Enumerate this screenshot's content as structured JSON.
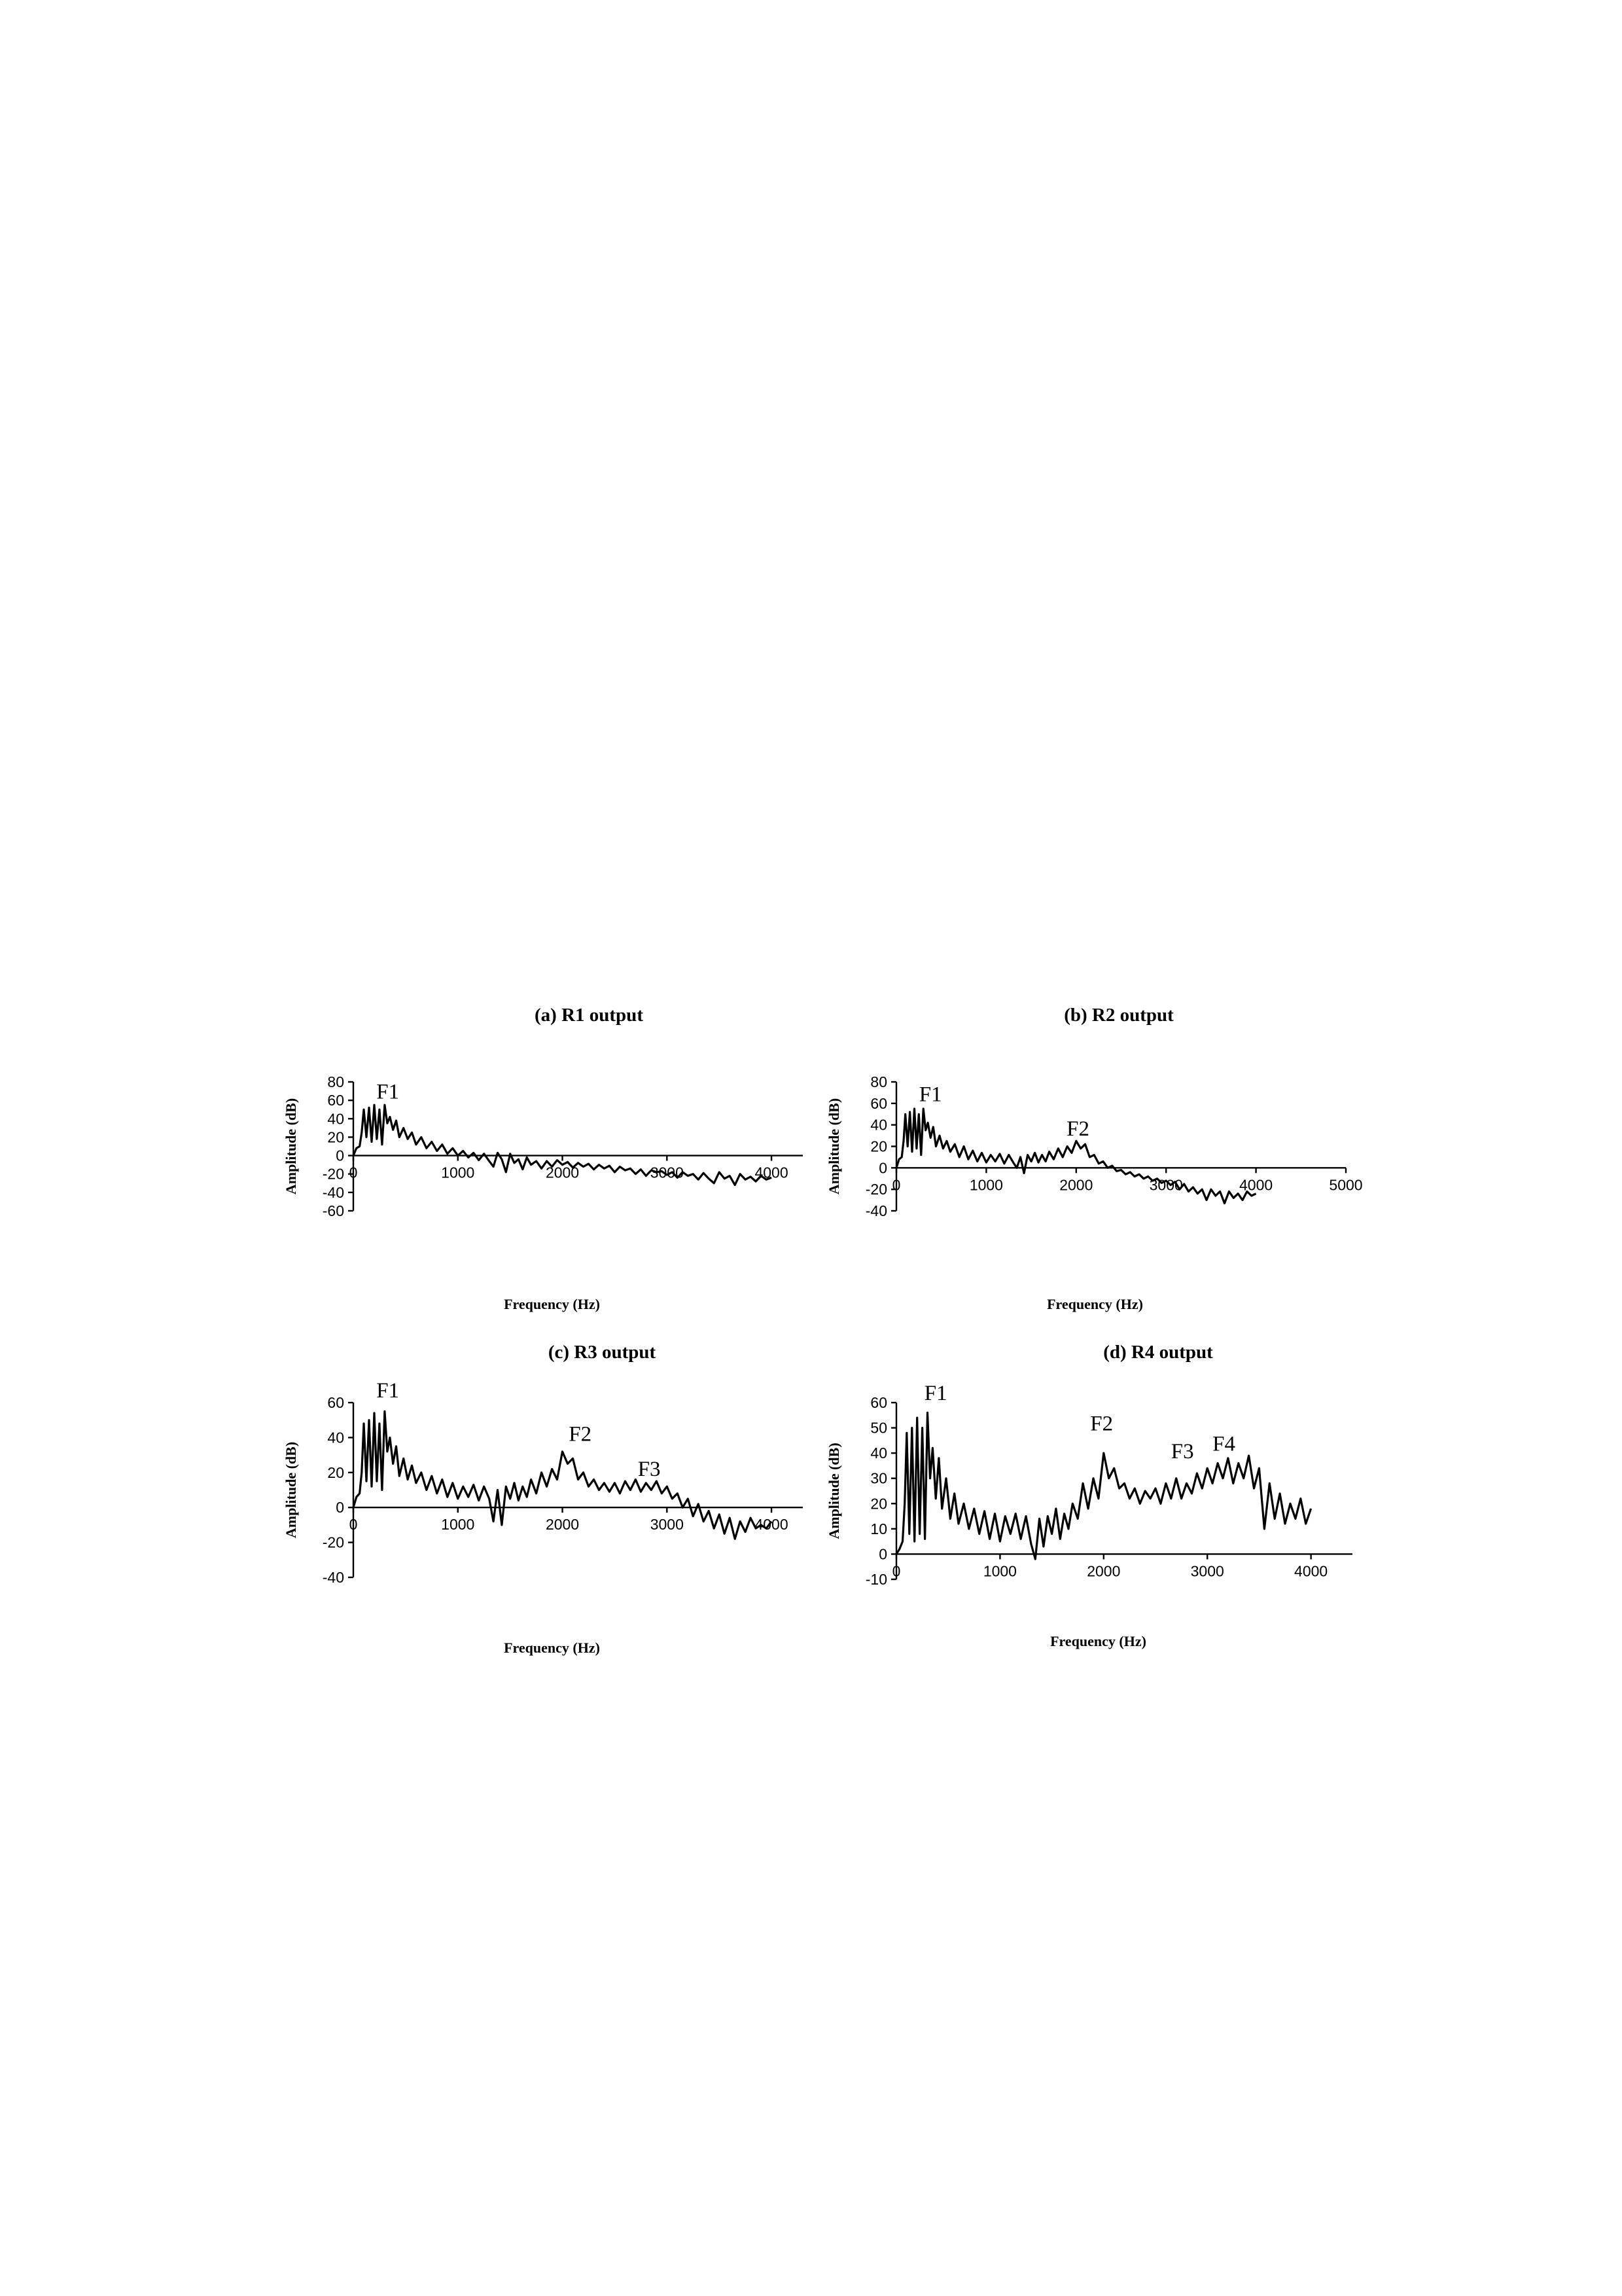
{
  "chart_data": [
    {
      "id": "a",
      "type": "line",
      "title": "(a) R1 output",
      "xlabel": "Frequency (Hz)",
      "ylabel": "Amplitude (dB)",
      "xlim": [
        0,
        4300
      ],
      "ylim": [
        -60,
        80
      ],
      "xticks": [
        0,
        1000,
        2000,
        3000,
        4000
      ],
      "xtick_labels": [
        "0",
        "1000",
        "2000",
        "3000",
        "4000"
      ],
      "yticks": [
        -60,
        -40,
        -20,
        0,
        20,
        40,
        60,
        80
      ],
      "annotations": [
        {
          "text": "F1",
          "x": 330,
          "y": 62
        }
      ],
      "x": [
        0,
        30,
        60,
        80,
        100,
        125,
        150,
        175,
        200,
        225,
        250,
        275,
        300,
        325,
        350,
        380,
        410,
        440,
        480,
        520,
        560,
        600,
        650,
        700,
        750,
        800,
        850,
        900,
        950,
        1000,
        1050,
        1100,
        1150,
        1200,
        1250,
        1300,
        1340,
        1380,
        1420,
        1460,
        1500,
        1540,
        1580,
        1620,
        1660,
        1700,
        1750,
        1800,
        1850,
        1900,
        1950,
        2000,
        2050,
        2100,
        2150,
        2200,
        2250,
        2300,
        2350,
        2400,
        2450,
        2500,
        2550,
        2600,
        2650,
        2700,
        2750,
        2800,
        2850,
        2900,
        2950,
        3000,
        3050,
        3100,
        3150,
        3200,
        3250,
        3300,
        3350,
        3400,
        3450,
        3500,
        3550,
        3600,
        3650,
        3700,
        3750,
        3800,
        3850,
        3900,
        3950,
        4000
      ],
      "values": [
        0,
        8,
        10,
        25,
        50,
        20,
        52,
        15,
        55,
        18,
        50,
        12,
        55,
        35,
        42,
        28,
        38,
        20,
        30,
        18,
        25,
        12,
        20,
        8,
        15,
        5,
        12,
        2,
        8,
        0,
        5,
        -2,
        3,
        -5,
        2,
        -6,
        -12,
        3,
        -4,
        -18,
        2,
        -8,
        -4,
        -15,
        -2,
        -10,
        -6,
        -14,
        -6,
        -12,
        -5,
        -10,
        -7,
        -13,
        -8,
        -12,
        -9,
        -15,
        -10,
        -14,
        -11,
        -18,
        -12,
        -16,
        -14,
        -20,
        -15,
        -22,
        -16,
        -18,
        -17,
        -21,
        -18,
        -24,
        -18,
        -22,
        -20,
        -26,
        -19,
        -25,
        -30,
        -18,
        -25,
        -22,
        -32,
        -20,
        -26,
        -23,
        -28,
        -22,
        -26,
        -24
      ]
    },
    {
      "id": "b",
      "type": "line",
      "title": "(b) R2 output",
      "xlabel": "Frequency (Hz)",
      "ylabel": "Amplitude (dB)",
      "xlim": [
        0,
        5000
      ],
      "ylim": [
        -40,
        80
      ],
      "xticks": [
        0,
        1000,
        2000,
        3000,
        4000,
        5000
      ],
      "xtick_labels": [
        "0",
        "1000",
        "2000",
        "3000",
        "4000",
        "5000"
      ],
      "yticks": [
        -40,
        -20,
        0,
        20,
        40,
        60,
        80
      ],
      "annotations": [
        {
          "text": "F1",
          "x": 380,
          "y": 62
        },
        {
          "text": "F2",
          "x": 2020,
          "y": 30
        }
      ],
      "x": [
        0,
        30,
        60,
        80,
        100,
        125,
        150,
        175,
        200,
        225,
        250,
        275,
        300,
        325,
        350,
        380,
        410,
        440,
        480,
        520,
        560,
        600,
        650,
        700,
        750,
        800,
        850,
        900,
        950,
        1000,
        1050,
        1100,
        1150,
        1200,
        1250,
        1300,
        1340,
        1380,
        1420,
        1460,
        1500,
        1540,
        1580,
        1620,
        1660,
        1700,
        1750,
        1800,
        1850,
        1900,
        1950,
        2000,
        2050,
        2100,
        2150,
        2200,
        2250,
        2300,
        2350,
        2400,
        2450,
        2500,
        2550,
        2600,
        2650,
        2700,
        2750,
        2800,
        2850,
        2900,
        2950,
        3000,
        3050,
        3100,
        3150,
        3200,
        3250,
        3300,
        3350,
        3400,
        3450,
        3500,
        3550,
        3600,
        3650,
        3700,
        3750,
        3800,
        3850,
        3900,
        3950,
        4000
      ],
      "values": [
        0,
        8,
        10,
        25,
        50,
        20,
        52,
        15,
        55,
        18,
        50,
        12,
        55,
        35,
        42,
        28,
        38,
        20,
        30,
        18,
        25,
        15,
        22,
        10,
        20,
        8,
        16,
        6,
        14,
        5,
        12,
        6,
        13,
        4,
        12,
        5,
        0,
        10,
        -5,
        12,
        6,
        14,
        5,
        12,
        6,
        15,
        8,
        18,
        10,
        20,
        14,
        25,
        18,
        22,
        10,
        12,
        4,
        6,
        0,
        2,
        -3,
        -2,
        -6,
        -4,
        -8,
        -6,
        -10,
        -8,
        -12,
        -10,
        -14,
        -12,
        -16,
        -13,
        -20,
        -15,
        -22,
        -18,
        -24,
        -20,
        -30,
        -20,
        -26,
        -22,
        -33,
        -22,
        -28,
        -24,
        -30,
        -22,
        -26,
        -24
      ]
    },
    {
      "id": "c",
      "type": "line",
      "title": "(c) R3 output",
      "xlabel": "Frequency (Hz)",
      "ylabel": "Amplitude (dB)",
      "xlim": [
        0,
        4300
      ],
      "ylim": [
        -40,
        60
      ],
      "xticks": [
        0,
        1000,
        2000,
        3000,
        4000
      ],
      "xtick_labels": [
        "0",
        "1000",
        "2000",
        "3000",
        "4000"
      ],
      "yticks": [
        -40,
        -20,
        0,
        20,
        40,
        60
      ],
      "annotations": [
        {
          "text": "F1",
          "x": 330,
          "y": 63
        },
        {
          "text": "F2",
          "x": 2170,
          "y": 38
        },
        {
          "text": "F3",
          "x": 2830,
          "y": 18
        }
      ],
      "x": [
        0,
        30,
        60,
        80,
        100,
        125,
        150,
        175,
        200,
        225,
        250,
        275,
        300,
        325,
        350,
        380,
        410,
        440,
        480,
        520,
        560,
        600,
        650,
        700,
        750,
        800,
        850,
        900,
        950,
        1000,
        1050,
        1100,
        1150,
        1200,
        1250,
        1300,
        1340,
        1380,
        1420,
        1460,
        1500,
        1540,
        1580,
        1620,
        1660,
        1700,
        1750,
        1800,
        1850,
        1900,
        1950,
        2000,
        2050,
        2100,
        2150,
        2200,
        2250,
        2300,
        2350,
        2400,
        2450,
        2500,
        2550,
        2600,
        2650,
        2700,
        2750,
        2800,
        2850,
        2900,
        2950,
        3000,
        3050,
        3100,
        3150,
        3200,
        3250,
        3300,
        3350,
        3400,
        3450,
        3500,
        3550,
        3600,
        3650,
        3700,
        3750,
        3800,
        3850,
        3900,
        3950,
        4000
      ],
      "values": [
        0,
        6,
        8,
        20,
        48,
        15,
        50,
        12,
        54,
        15,
        48,
        10,
        55,
        32,
        40,
        25,
        35,
        18,
        28,
        16,
        24,
        14,
        20,
        10,
        18,
        8,
        16,
        6,
        14,
        5,
        12,
        6,
        13,
        4,
        12,
        5,
        -8,
        10,
        -10,
        12,
        5,
        14,
        4,
        12,
        6,
        16,
        8,
        20,
        12,
        22,
        16,
        32,
        25,
        28,
        16,
        20,
        12,
        16,
        10,
        14,
        9,
        14,
        8,
        15,
        10,
        16,
        9,
        14,
        10,
        15,
        8,
        12,
        5,
        8,
        0,
        5,
        -5,
        2,
        -8,
        -2,
        -12,
        -4,
        -15,
        -6,
        -18,
        -8,
        -14,
        -6,
        -12,
        -10,
        -12,
        -8
      ]
    },
    {
      "id": "d",
      "type": "line",
      "title": "(d) R4 output",
      "xlabel": "Frequency (Hz)",
      "ylabel": "Amplitude (dB)",
      "xlim": [
        0,
        4400
      ],
      "ylim": [
        -10,
        60
      ],
      "xticks": [
        0,
        1000,
        2000,
        3000,
        4000
      ],
      "xtick_labels": [
        "0",
        "1000",
        "2000",
        "3000",
        "4000"
      ],
      "yticks": [
        -10,
        0,
        10,
        20,
        30,
        40,
        50,
        60
      ],
      "annotations": [
        {
          "text": "F1",
          "x": 380,
          "y": 61
        },
        {
          "text": "F2",
          "x": 1980,
          "y": 49
        },
        {
          "text": "F3",
          "x": 2760,
          "y": 38
        },
        {
          "text": "F4",
          "x": 3160,
          "y": 41
        }
      ],
      "x": [
        0,
        30,
        60,
        80,
        100,
        125,
        150,
        175,
        200,
        225,
        250,
        275,
        300,
        325,
        350,
        380,
        410,
        440,
        480,
        520,
        560,
        600,
        650,
        700,
        750,
        800,
        850,
        900,
        950,
        1000,
        1050,
        1100,
        1150,
        1200,
        1250,
        1300,
        1340,
        1380,
        1420,
        1460,
        1500,
        1540,
        1580,
        1620,
        1660,
        1700,
        1750,
        1800,
        1850,
        1900,
        1950,
        2000,
        2050,
        2100,
        2150,
        2200,
        2250,
        2300,
        2350,
        2400,
        2450,
        2500,
        2550,
        2600,
        2650,
        2700,
        2750,
        2800,
        2850,
        2900,
        2950,
        3000,
        3050,
        3100,
        3150,
        3200,
        3250,
        3300,
        3350,
        3400,
        3450,
        3500,
        3550,
        3600,
        3650,
        3700,
        3750,
        3800,
        3850,
        3900,
        3950,
        4000
      ],
      "values": [
        0,
        2,
        5,
        20,
        48,
        8,
        50,
        5,
        54,
        8,
        50,
        6,
        56,
        30,
        42,
        22,
        38,
        18,
        30,
        14,
        24,
        12,
        20,
        10,
        18,
        8,
        17,
        6,
        16,
        5,
        15,
        8,
        16,
        6,
        15,
        4,
        -2,
        14,
        3,
        15,
        8,
        18,
        6,
        16,
        10,
        20,
        14,
        28,
        18,
        30,
        22,
        40,
        30,
        34,
        26,
        28,
        22,
        26,
        20,
        25,
        22,
        26,
        20,
        28,
        22,
        30,
        22,
        28,
        24,
        32,
        26,
        34,
        28,
        36,
        30,
        38,
        28,
        36,
        30,
        39,
        26,
        34,
        10,
        28,
        14,
        24,
        12,
        20,
        14,
        22,
        12,
        18
      ]
    }
  ]
}
